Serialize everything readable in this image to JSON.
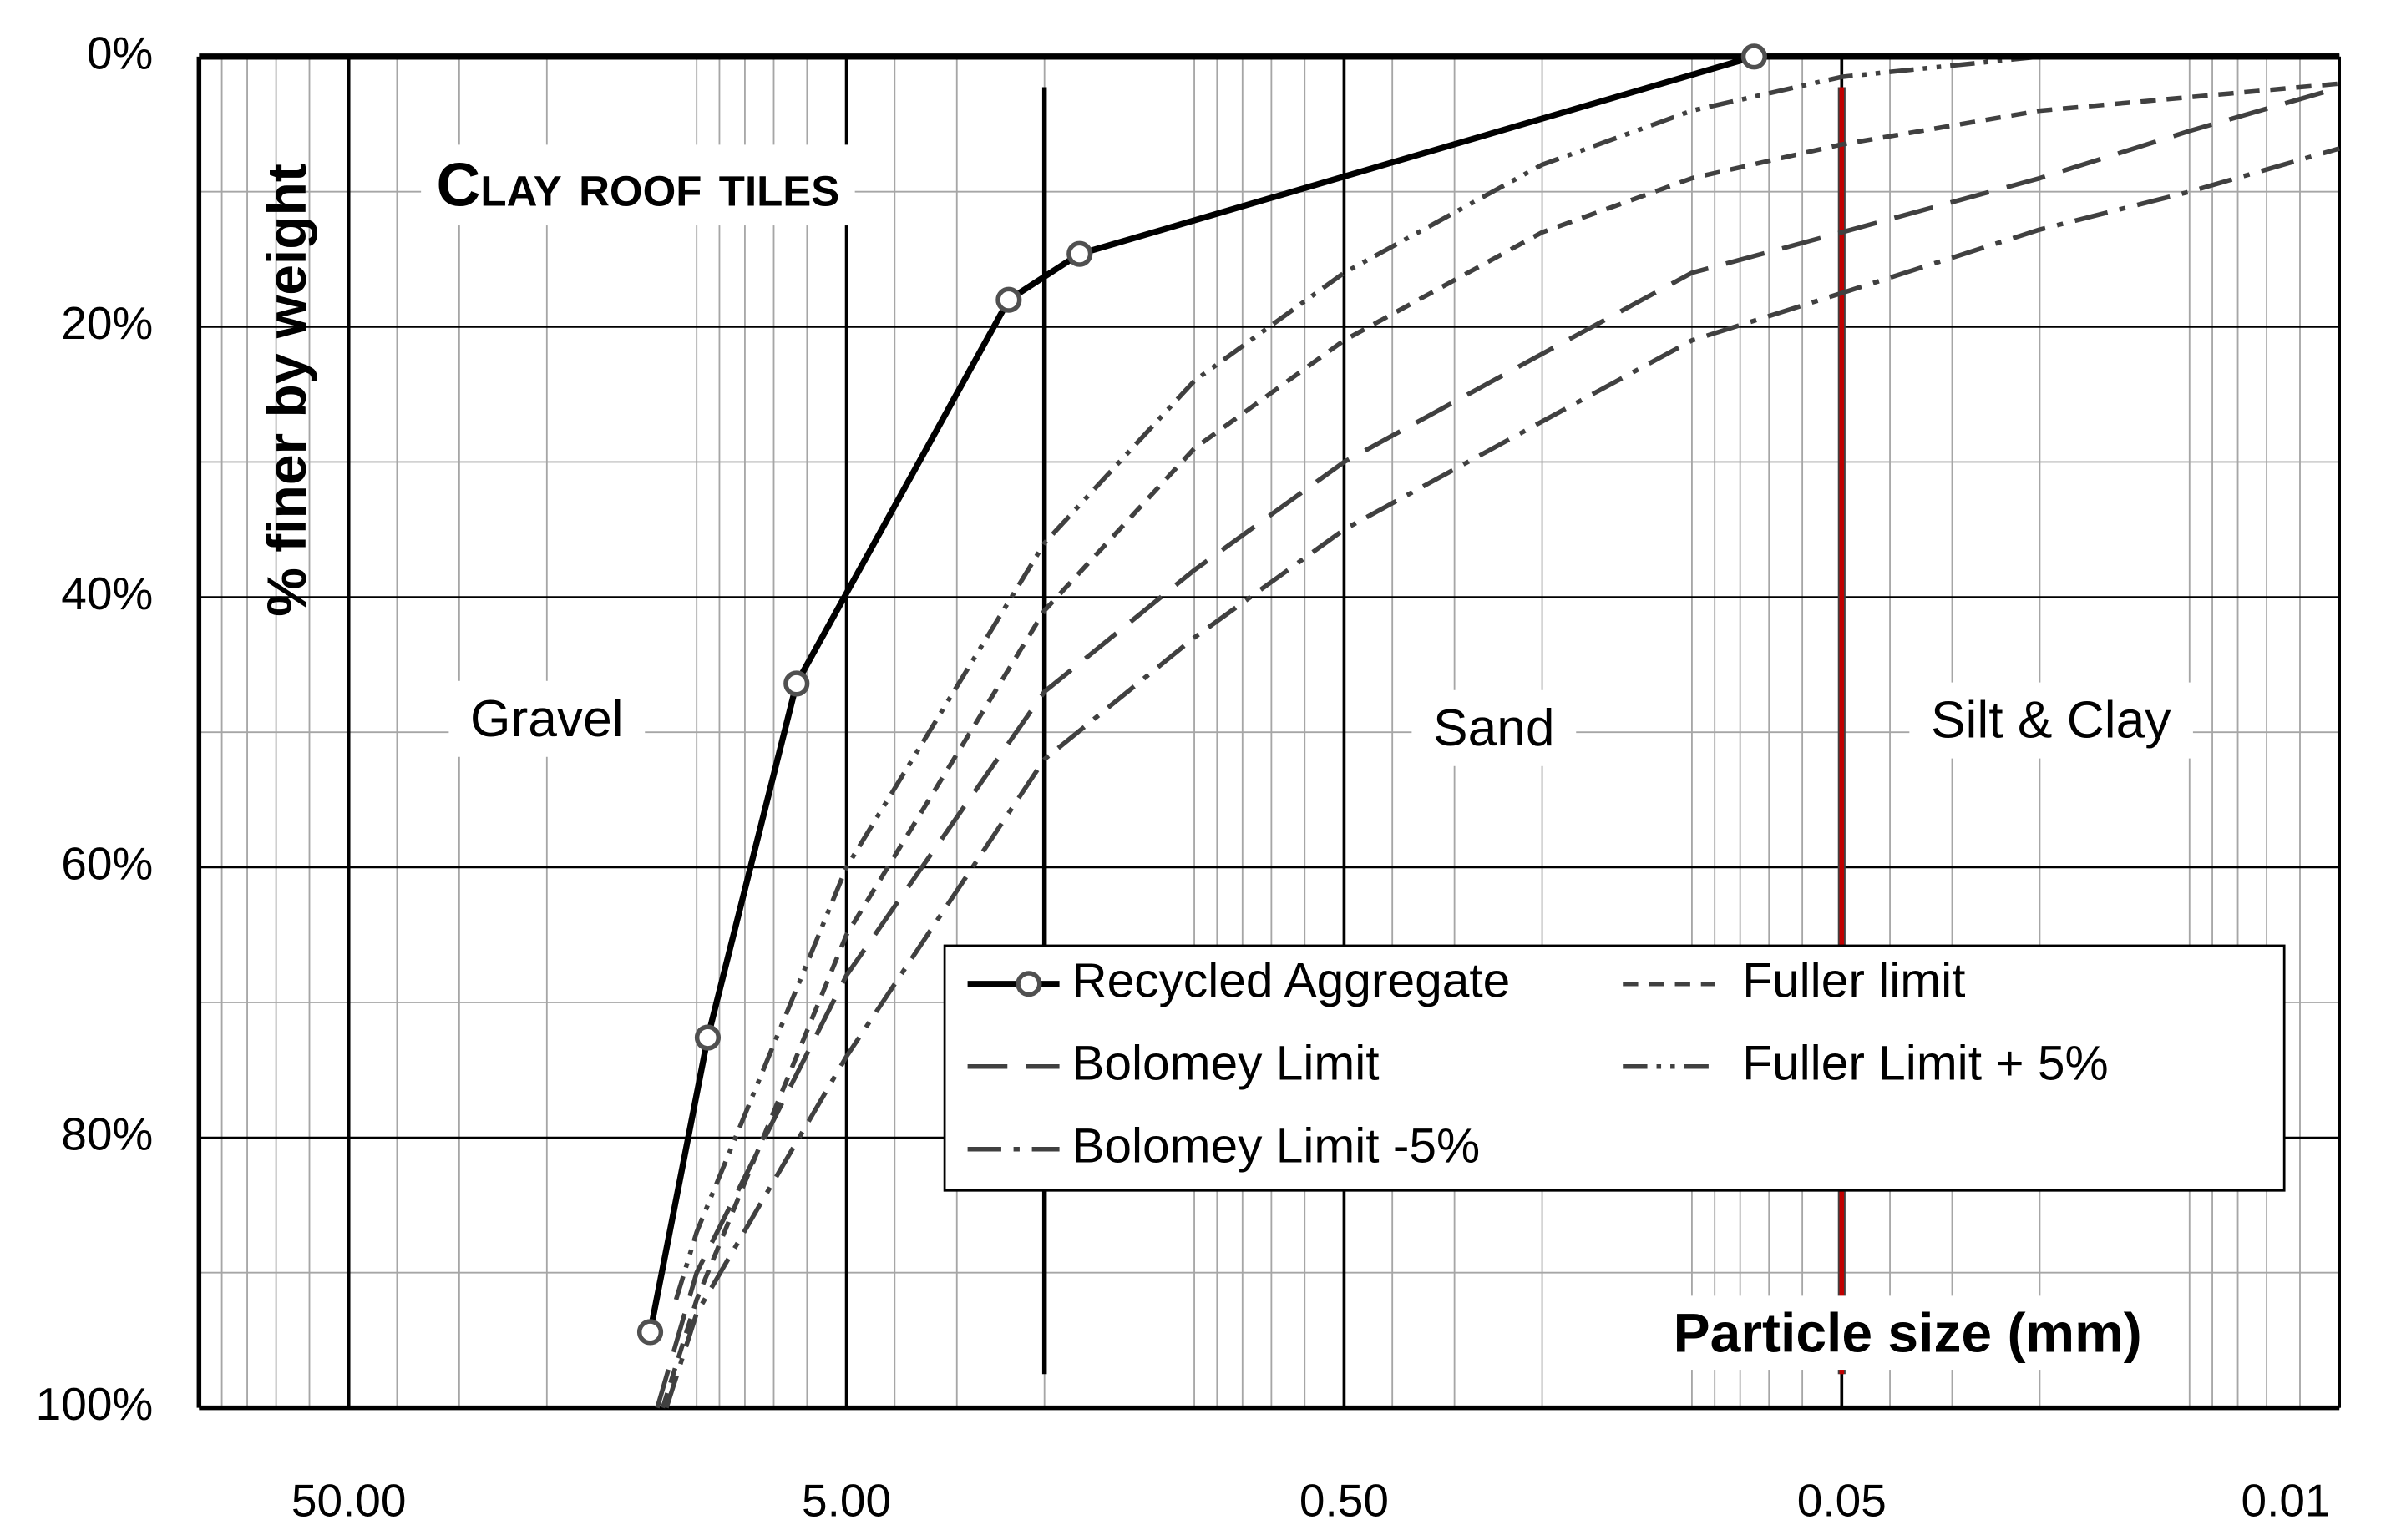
{
  "chart_data": {
    "type": "line",
    "title": "Clay roof tiles",
    "x_label": "Particle size (mm)",
    "y_label": "% finer by weight",
    "x_log": true,
    "xlim": [
      100,
      0.005
    ],
    "xticks": [
      {
        "value": 50,
        "label": "50.00"
      },
      {
        "value": 5,
        "label": "5.00"
      },
      {
        "value": 0.5,
        "label": "0.50"
      },
      {
        "value": 0.05,
        "label": "0.05"
      },
      {
        "value": 0.005,
        "label": "0.01"
      }
    ],
    "ylim": [
      100,
      0
    ],
    "yticks": [
      {
        "value": 0,
        "label": "0%"
      },
      {
        "value": 20,
        "label": "20%"
      },
      {
        "value": 40,
        "label": "40%"
      },
      {
        "value": 60,
        "label": "60%"
      },
      {
        "value": 80,
        "label": "80%"
      },
      {
        "value": 100,
        "label": "100%"
      }
    ],
    "grid": true,
    "regions": [
      {
        "label": "Gravel",
        "x": 20
      },
      {
        "label": "Sand",
        "x": 0.25
      },
      {
        "label": "Silt & Clay",
        "x": 0.019
      }
    ],
    "boundary_lines": [
      {
        "value": 2,
        "color": "#000000"
      },
      {
        "value": 0.05,
        "color": "#c00000"
      }
    ],
    "series": [
      {
        "name": "Recycled Aggregate",
        "color": "#000000",
        "style": "solid-marker",
        "x": [
          12.4,
          9.5,
          6.3,
          2.36,
          1.7,
          0.075
        ],
        "values": [
          94.4,
          72.6,
          46.4,
          18,
          14.6,
          0
        ]
      },
      {
        "name": "Fuller limit",
        "color": "#404040",
        "style": "dashed",
        "x": [
          11.7,
          10,
          5,
          2,
          1,
          0.5,
          0.2,
          0.1,
          0.05,
          0.02,
          0.01,
          0.005
        ],
        "values": [
          100,
          92,
          65,
          41,
          29,
          21,
          13,
          9,
          6.5,
          4,
          3,
          2
        ]
      },
      {
        "name": "Bolomey Limit",
        "color": "#404040",
        "style": "long-dashed",
        "x": [
          12,
          10,
          5,
          2,
          1,
          0.5,
          0.2,
          0.1,
          0.05,
          0.02,
          0.01,
          0.005
        ],
        "values": [
          100,
          90,
          68,
          47,
          38,
          30,
          22,
          16,
          13,
          9,
          5.5,
          2.3
        ]
      },
      {
        "name": "Fuller Limit + 5%",
        "color": "#404040",
        "style": "dash-dot-dot",
        "x": [
          11,
          10,
          5,
          2,
          1,
          0.5,
          0.2,
          0.1,
          0.05,
          0.02,
          0.01,
          0.005
        ],
        "values": [
          92,
          87,
          60,
          36,
          24,
          16,
          8,
          4,
          1.5,
          0,
          0,
          0
        ]
      },
      {
        "name": "Bolomey Limit -5%",
        "color": "#404040",
        "style": "dash-dot",
        "x": [
          11.5,
          10,
          5,
          2,
          1,
          0.5,
          0.2,
          0.1,
          0.05,
          0.02,
          0.01,
          0.005
        ],
        "values": [
          100,
          93,
          74,
          52,
          43,
          35,
          27,
          21,
          17.5,
          12.8,
          10,
          6.8
        ]
      }
    ]
  }
}
